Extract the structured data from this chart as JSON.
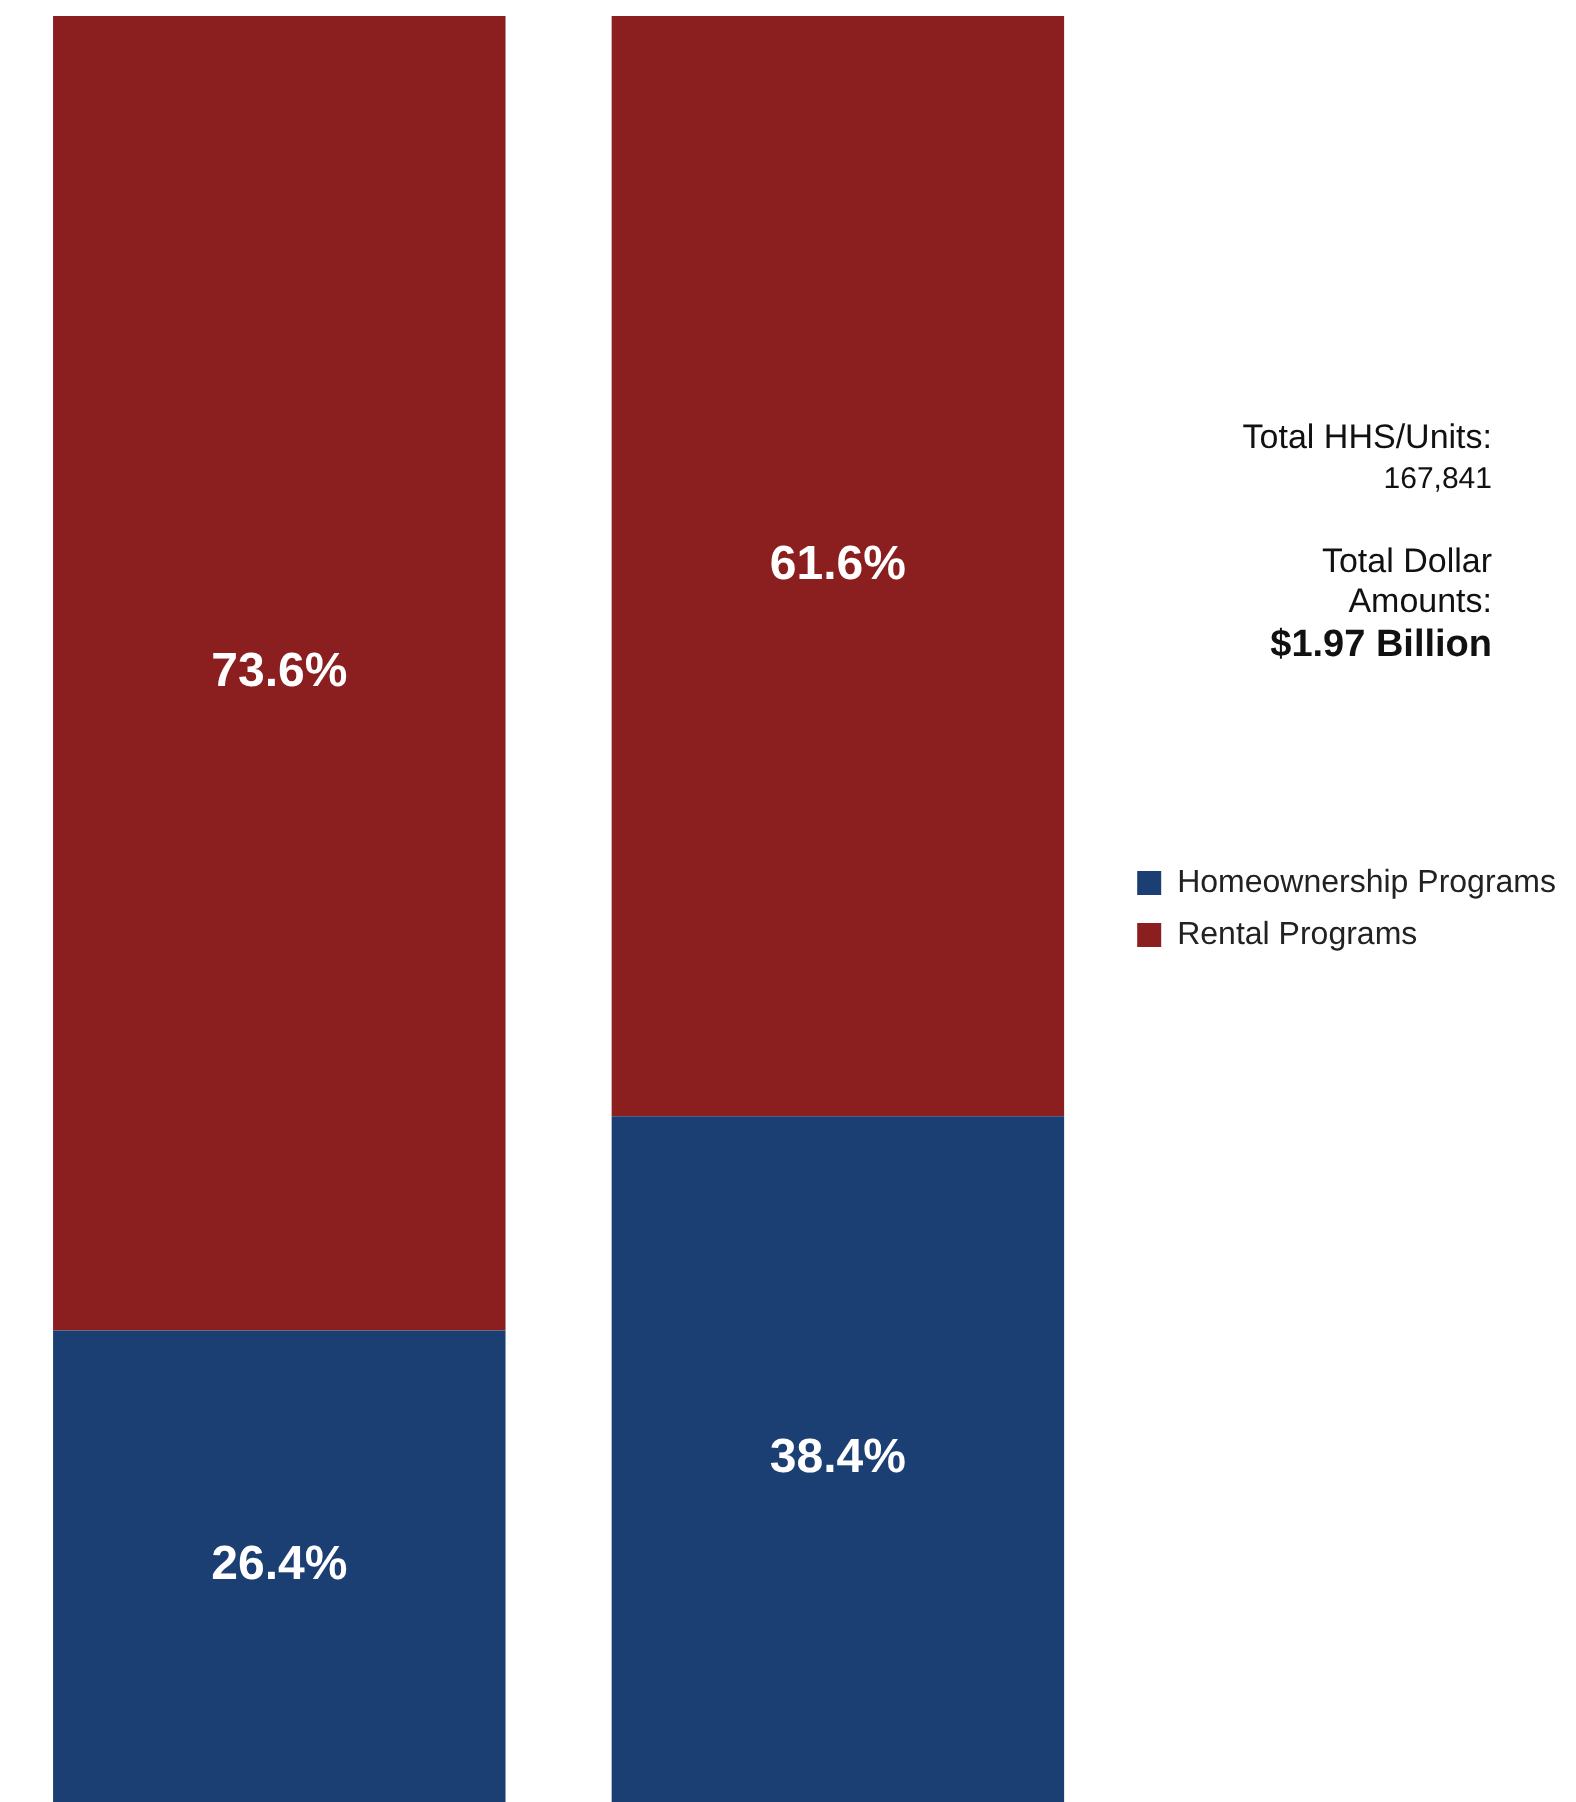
{
  "chart_data": {
    "type": "bar",
    "stacked": true,
    "categories": [
      null,
      null
    ],
    "series": [
      {
        "name": "Homeownership Programs",
        "color": "#1b3f73",
        "values": [
          26.4,
          38.4
        ],
        "value_labels": [
          "26.4%",
          "38.4%"
        ]
      },
      {
        "name": "Rental Programs",
        "color": "#8b1e1e",
        "values": [
          73.6,
          61.6
        ],
        "value_labels": [
          "73.6%",
          "61.6%"
        ]
      }
    ],
    "legend": "right",
    "tick_labels": false,
    "annotations": [
      "Total HHS/Units:",
      "167,841",
      "Total Dollar Amounts:",
      "$1.97 Billion"
    ]
  }
}
